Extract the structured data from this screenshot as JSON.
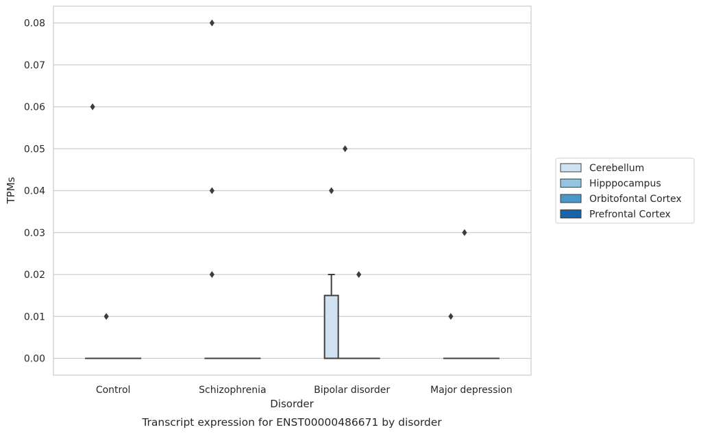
{
  "chart_data": {
    "type": "box",
    "caption": "Transcript expression for ENST00000486671 by disorder",
    "xlabel": "Disorder",
    "ylabel": "TPMs",
    "categories": [
      "Control",
      "Schizophrenia",
      "Bipolar disorder",
      "Major depression"
    ],
    "ylim": [
      -0.004,
      0.084
    ],
    "yticks": [
      "0.00",
      "0.01",
      "0.02",
      "0.03",
      "0.04",
      "0.05",
      "0.06",
      "0.07",
      "0.08"
    ],
    "ytick_values": [
      0,
      0.01,
      0.02,
      0.03,
      0.04,
      0.05,
      0.06,
      0.07,
      0.08
    ],
    "grid": "horizontal",
    "legend_placement": "right",
    "series": [
      {
        "name": "Cerebellum",
        "color": "#d0e1f2",
        "boxes": [
          {
            "q1": 0,
            "median": 0,
            "q3": 0,
            "whisker_low": 0,
            "whisker_high": 0,
            "outliers": [
              0.06
            ]
          },
          {
            "q1": 0,
            "median": 0,
            "q3": 0,
            "whisker_low": 0,
            "whisker_high": 0,
            "outliers": [
              0.08,
              0.04,
              0.02
            ]
          },
          {
            "q1": 0,
            "median": 0,
            "q3": 0.015,
            "whisker_low": 0,
            "whisker_high": 0.02,
            "outliers": [
              0.04
            ]
          },
          {
            "q1": 0,
            "median": 0,
            "q3": 0,
            "whisker_low": 0,
            "whisker_high": 0,
            "outliers": [
              0.01
            ]
          }
        ]
      },
      {
        "name": "Hipppocampus",
        "color": "#94c4df",
        "boxes": [
          {
            "q1": 0,
            "median": 0,
            "q3": 0,
            "whisker_low": 0,
            "whisker_high": 0,
            "outliers": [
              0.01
            ]
          },
          {
            "q1": 0,
            "median": 0,
            "q3": 0,
            "whisker_low": 0,
            "whisker_high": 0,
            "outliers": []
          },
          {
            "q1": 0,
            "median": 0,
            "q3": 0,
            "whisker_low": 0,
            "whisker_high": 0,
            "outliers": [
              0.05
            ]
          },
          {
            "q1": 0,
            "median": 0,
            "q3": 0,
            "whisker_low": 0,
            "whisker_high": 0,
            "outliers": [
              0.03
            ]
          }
        ]
      },
      {
        "name": "Orbitofontal Cortex",
        "color": "#4a98c9",
        "boxes": [
          {
            "q1": 0,
            "median": 0,
            "q3": 0,
            "whisker_low": 0,
            "whisker_high": 0,
            "outliers": []
          },
          {
            "q1": 0,
            "median": 0,
            "q3": 0,
            "whisker_low": 0,
            "whisker_high": 0,
            "outliers": []
          },
          {
            "q1": 0,
            "median": 0,
            "q3": 0,
            "whisker_low": 0,
            "whisker_high": 0,
            "outliers": [
              0.02
            ]
          },
          {
            "q1": 0,
            "median": 0,
            "q3": 0,
            "whisker_low": 0,
            "whisker_high": 0,
            "outliers": []
          }
        ]
      },
      {
        "name": "Prefrontal Cortex",
        "color": "#1764ab",
        "boxes": [
          {
            "q1": 0,
            "median": 0,
            "q3": 0,
            "whisker_low": 0,
            "whisker_high": 0,
            "outliers": []
          },
          {
            "q1": 0,
            "median": 0,
            "q3": 0,
            "whisker_low": 0,
            "whisker_high": 0,
            "outliers": []
          },
          {
            "q1": 0,
            "median": 0,
            "q3": 0,
            "whisker_low": 0,
            "whisker_high": 0,
            "outliers": []
          },
          {
            "q1": 0,
            "median": 0,
            "q3": 0,
            "whisker_low": 0,
            "whisker_high": 0,
            "outliers": []
          }
        ]
      }
    ]
  }
}
